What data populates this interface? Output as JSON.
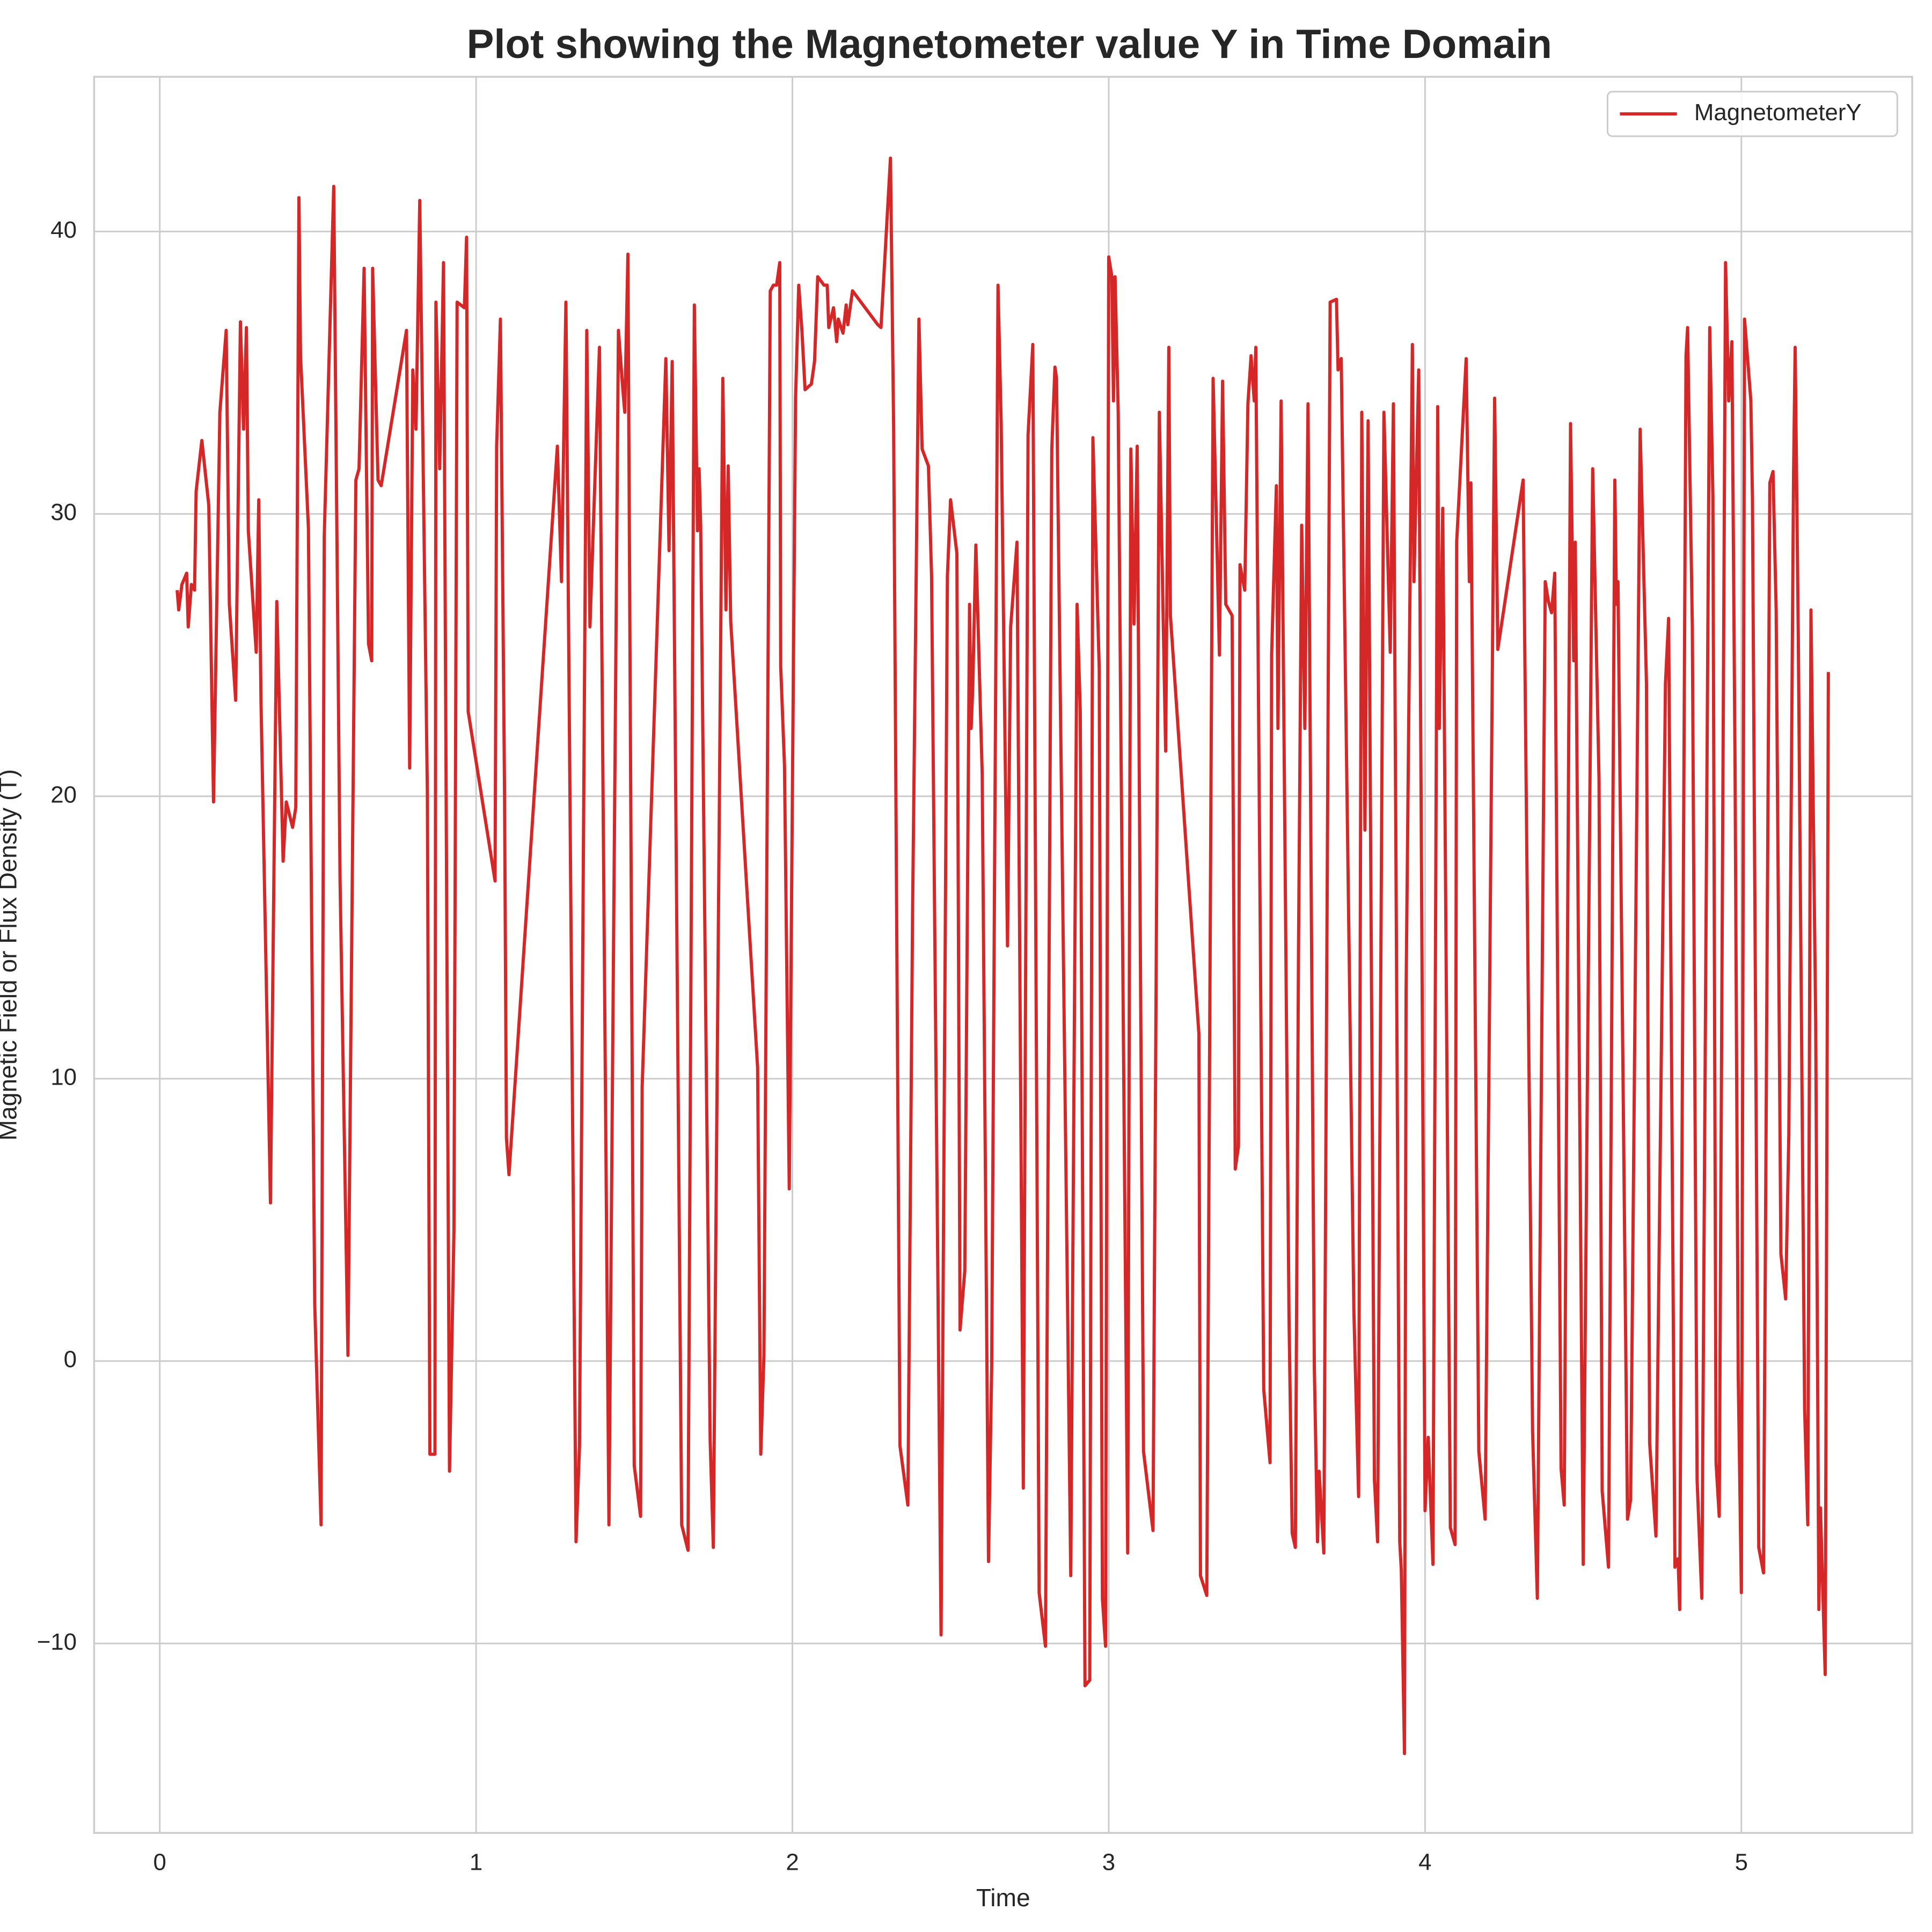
{
  "chart_data": {
    "type": "line",
    "title": "Plot showing the Magnetometer value Y in Time Domain",
    "xlabel": "Time",
    "ylabel": "Magnetic Field or Flux Density (T)",
    "xlim": [
      -0.2075,
      5.54
    ],
    "ylim": [
      -16.71,
      45.48
    ],
    "xticks": [
      0,
      1,
      2,
      3,
      4,
      5
    ],
    "yticks": [
      {
        "value": -10,
        "label": "−10"
      },
      0,
      10,
      20,
      30,
      40
    ],
    "grid": true,
    "legend": "upper right",
    "x": [
      0.055,
      0.06,
      0.07,
      0.085,
      0.09,
      0.1,
      0.11,
      0.115,
      0.133,
      0.155,
      0.17,
      0.19,
      0.21,
      0.22,
      0.24,
      0.255,
      0.265,
      0.274,
      0.28,
      0.305,
      0.313,
      0.32,
      0.35,
      0.37,
      0.39,
      0.4,
      0.42,
      0.43,
      0.44,
      0.445,
      0.47,
      0.49,
      0.51,
      0.52,
      0.55,
      0.57,
      0.595,
      0.62,
      0.63,
      0.646,
      0.66,
      0.67,
      0.673,
      0.69,
      0.7,
      0.78,
      0.79,
      0.8,
      0.81,
      0.822,
      0.846,
      0.854,
      0.87,
      0.873,
      0.885,
      0.897,
      0.916,
      0.93,
      0.94,
      0.963,
      0.97,
      0.975,
      1.06,
      1.065,
      1.077,
      1.09,
      1.096,
      1.104,
      1.257,
      1.27,
      1.284,
      1.316,
      1.327,
      1.35,
      1.36,
      1.39,
      1.42,
      1.45,
      1.464,
      1.47,
      1.48,
      1.5,
      1.52,
      1.525,
      1.6,
      1.61,
      1.62,
      1.65,
      1.67,
      1.69,
      1.7,
      1.705,
      1.71,
      1.74,
      1.75,
      1.78,
      1.79,
      1.797,
      1.805,
      1.89,
      1.9,
      1.91,
      1.93,
      1.94,
      1.95,
      1.96,
      1.963,
      1.975,
      1.99,
      2.01,
      2.02,
      2.03,
      2.04,
      2.06,
      2.07,
      2.08,
      2.1,
      2.11,
      2.115,
      2.13,
      2.14,
      2.145,
      2.16,
      2.17,
      2.175,
      2.19,
      2.27,
      2.28,
      2.31,
      2.32,
      2.34,
      2.365,
      2.38,
      2.4,
      2.41,
      2.43,
      2.44,
      2.47,
      2.49,
      2.5,
      2.52,
      2.53,
      2.545,
      2.56,
      2.565,
      2.57,
      2.58,
      2.6,
      2.62,
      2.63,
      2.65,
      2.66,
      2.68,
      2.69,
      2.71,
      2.73,
      2.745,
      2.76,
      2.78,
      2.8,
      2.82,
      2.83,
      2.835,
      2.88,
      2.9,
      2.91,
      2.925,
      2.94,
      2.95,
      2.97,
      2.98,
      2.99,
      3.0,
      3.01,
      3.015,
      3.02,
      3.03,
      3.06,
      3.07,
      3.08,
      3.09,
      3.11,
      3.14,
      3.16,
      3.18,
      3.19,
      3.195,
      3.285,
      3.29,
      3.31,
      3.33,
      3.35,
      3.36,
      3.37,
      3.39,
      3.4,
      3.41,
      3.415,
      3.43,
      3.44,
      3.45,
      3.46,
      3.465,
      3.49,
      3.51,
      3.515,
      3.53,
      3.535,
      3.545,
      3.57,
      3.58,
      3.59,
      3.6,
      3.61,
      3.62,
      3.63,
      3.65,
      3.66,
      3.665,
      3.68,
      3.69,
      3.7,
      3.72,
      3.725,
      3.735,
      3.775,
      3.79,
      3.8,
      3.81,
      3.82,
      3.84,
      3.85,
      3.87,
      3.89,
      3.9,
      3.92,
      3.925,
      3.935,
      3.94,
      3.96,
      3.965,
      3.98,
      4.0,
      4.01,
      4.025,
      4.04,
      4.045,
      4.056,
      4.08,
      4.095,
      4.1,
      4.13,
      4.14,
      4.145,
      4.17,
      4.19,
      4.22,
      4.23,
      4.31,
      4.34,
      4.355,
      4.38,
      4.39,
      4.4,
      4.41,
      4.43,
      4.44,
      4.46,
      4.47,
      4.475,
      4.5,
      4.53,
      4.55,
      4.56,
      4.58,
      4.6,
      4.605,
      4.61,
      4.64,
      4.65,
      4.68,
      4.7,
      4.71,
      4.73,
      4.76,
      4.77,
      4.79,
      4.8,
      4.805,
      4.825,
      4.83,
      4.845,
      4.86,
      4.875,
      4.9,
      4.91,
      4.92,
      4.93,
      4.95,
      4.96,
      4.97,
      4.98,
      4.99,
      5.0,
      5.01,
      5.03,
      5.035,
      5.055,
      5.07,
      5.09,
      5.1,
      5.11,
      5.125,
      5.14,
      5.15,
      5.165,
      5.17,
      5.18,
      5.2,
      5.21,
      5.22,
      5.235,
      5.245,
      5.25,
      5.265,
      5.275
    ],
    "series": [
      {
        "name": "MagnetometerY",
        "color": "#d62728",
        "values": [
          27.3,
          26.6,
          27.5,
          27.9,
          26.0,
          27.5,
          27.3,
          30.8,
          32.6,
          30.3,
          19.8,
          33.6,
          36.5,
          26.8,
          23.4,
          36.8,
          33.0,
          36.6,
          29.4,
          25.1,
          30.5,
          23.4,
          5.6,
          26.9,
          17.7,
          19.8,
          18.9,
          19.6,
          41.2,
          35.6,
          29.5,
          2.0,
          -5.8,
          29.2,
          41.6,
          17.0,
          0.2,
          31.2,
          31.6,
          38.7,
          25.4,
          24.8,
          38.7,
          31.2,
          31.0,
          36.5,
          21.0,
          35.1,
          33.0,
          41.1,
          20.1,
          -3.3,
          -3.3,
          37.5,
          31.6,
          38.9,
          -3.9,
          4.6,
          37.5,
          37.3,
          39.8,
          23.0,
          17.0,
          32.4,
          36.9,
          20.1,
          7.9,
          6.6,
          32.4,
          27.6,
          37.5,
          -6.4,
          -3.0,
          36.5,
          26.0,
          35.9,
          -5.8,
          36.5,
          34.4,
          33.6,
          39.2,
          -3.7,
          -5.5,
          9.7,
          35.5,
          28.7,
          35.4,
          -5.8,
          -6.7,
          37.4,
          29.4,
          31.6,
          29.6,
          -2.8,
          -6.6,
          34.8,
          26.6,
          31.7,
          26.2,
          10.4,
          -3.3,
          0.2,
          37.9,
          38.1,
          38.1,
          38.9,
          24.6,
          21.1,
          6.1,
          34.1,
          38.1,
          36.5,
          34.4,
          34.6,
          35.4,
          38.4,
          38.1,
          38.1,
          36.6,
          37.3,
          36.1,
          36.9,
          36.4,
          37.4,
          36.7,
          37.9,
          36.7,
          36.6,
          42.6,
          33.1,
          -3.0,
          -5.1,
          16.0,
          36.9,
          32.3,
          31.7,
          27.8,
          -9.7,
          27.8,
          30.5,
          28.6,
          1.1,
          3.2,
          26.8,
          22.4,
          23.8,
          28.9,
          20.8,
          -7.1,
          -0.2,
          38.1,
          33.2,
          14.7,
          26.0,
          29.0,
          -4.5,
          32.8,
          36.0,
          -8.2,
          -10.1,
          32.3,
          35.2,
          34.8,
          -7.6,
          26.8,
          23.0,
          -11.5,
          -11.3,
          32.7,
          24.5,
          -8.4,
          -10.1,
          39.1,
          38.4,
          34.0,
          38.4,
          33.6,
          -6.8,
          32.3,
          26.1,
          32.4,
          -3.2,
          -6.0,
          33.6,
          21.6,
          35.9,
          26.4,
          11.6,
          -7.6,
          -8.3,
          34.8,
          25.0,
          34.7,
          26.8,
          26.4,
          6.8,
          7.6,
          28.2,
          27.3,
          33.9,
          35.6,
          34.0,
          35.9,
          -1.0,
          -3.6,
          25.0,
          31.0,
          22.4,
          34.0,
          1.5,
          -6.1,
          -6.6,
          14.6,
          29.6,
          22.4,
          33.9,
          -0.2,
          -6.4,
          -3.9,
          -6.8,
          15.3,
          37.5,
          37.6,
          35.1,
          35.5,
          1.8,
          -4.8,
          33.6,
          18.8,
          33.3,
          -4.2,
          -6.4,
          33.6,
          25.1,
          33.9,
          -6.4,
          -7.4,
          -13.9,
          13.0,
          36.0,
          27.6,
          35.1,
          -5.3,
          -2.7,
          -7.2,
          33.8,
          22.4,
          30.2,
          -5.9,
          -6.5,
          29.0,
          35.5,
          27.6,
          31.1,
          -3.2,
          -5.6,
          34.1,
          25.2,
          31.2,
          -2.5,
          -8.4,
          27.6,
          26.9,
          26.5,
          27.9,
          -3.8,
          -5.1,
          33.2,
          24.8,
          29.0,
          -7.2,
          31.6,
          20.6,
          -4.6,
          -7.3,
          31.2,
          26.8,
          27.6,
          -5.6,
          -4.9,
          33.0,
          24.0,
          -2.9,
          -6.2,
          24.0,
          26.3,
          -7.3,
          -7.0,
          -8.8,
          35.6,
          36.6,
          26.0,
          -4.2,
          -8.4,
          36.6,
          30.6,
          -3.6,
          -5.5,
          38.9,
          34.0,
          36.1,
          21.1,
          -0.4,
          -8.2,
          36.9,
          34.0,
          30.6,
          -6.6,
          -7.5,
          31.1,
          31.5,
          26.6,
          3.8,
          2.2,
          8.0,
          31.4,
          35.9,
          25.6,
          -1.7,
          -5.8,
          26.6,
          12.0,
          -8.8,
          -5.2,
          -11.1,
          24.4
        ]
      }
    ]
  }
}
